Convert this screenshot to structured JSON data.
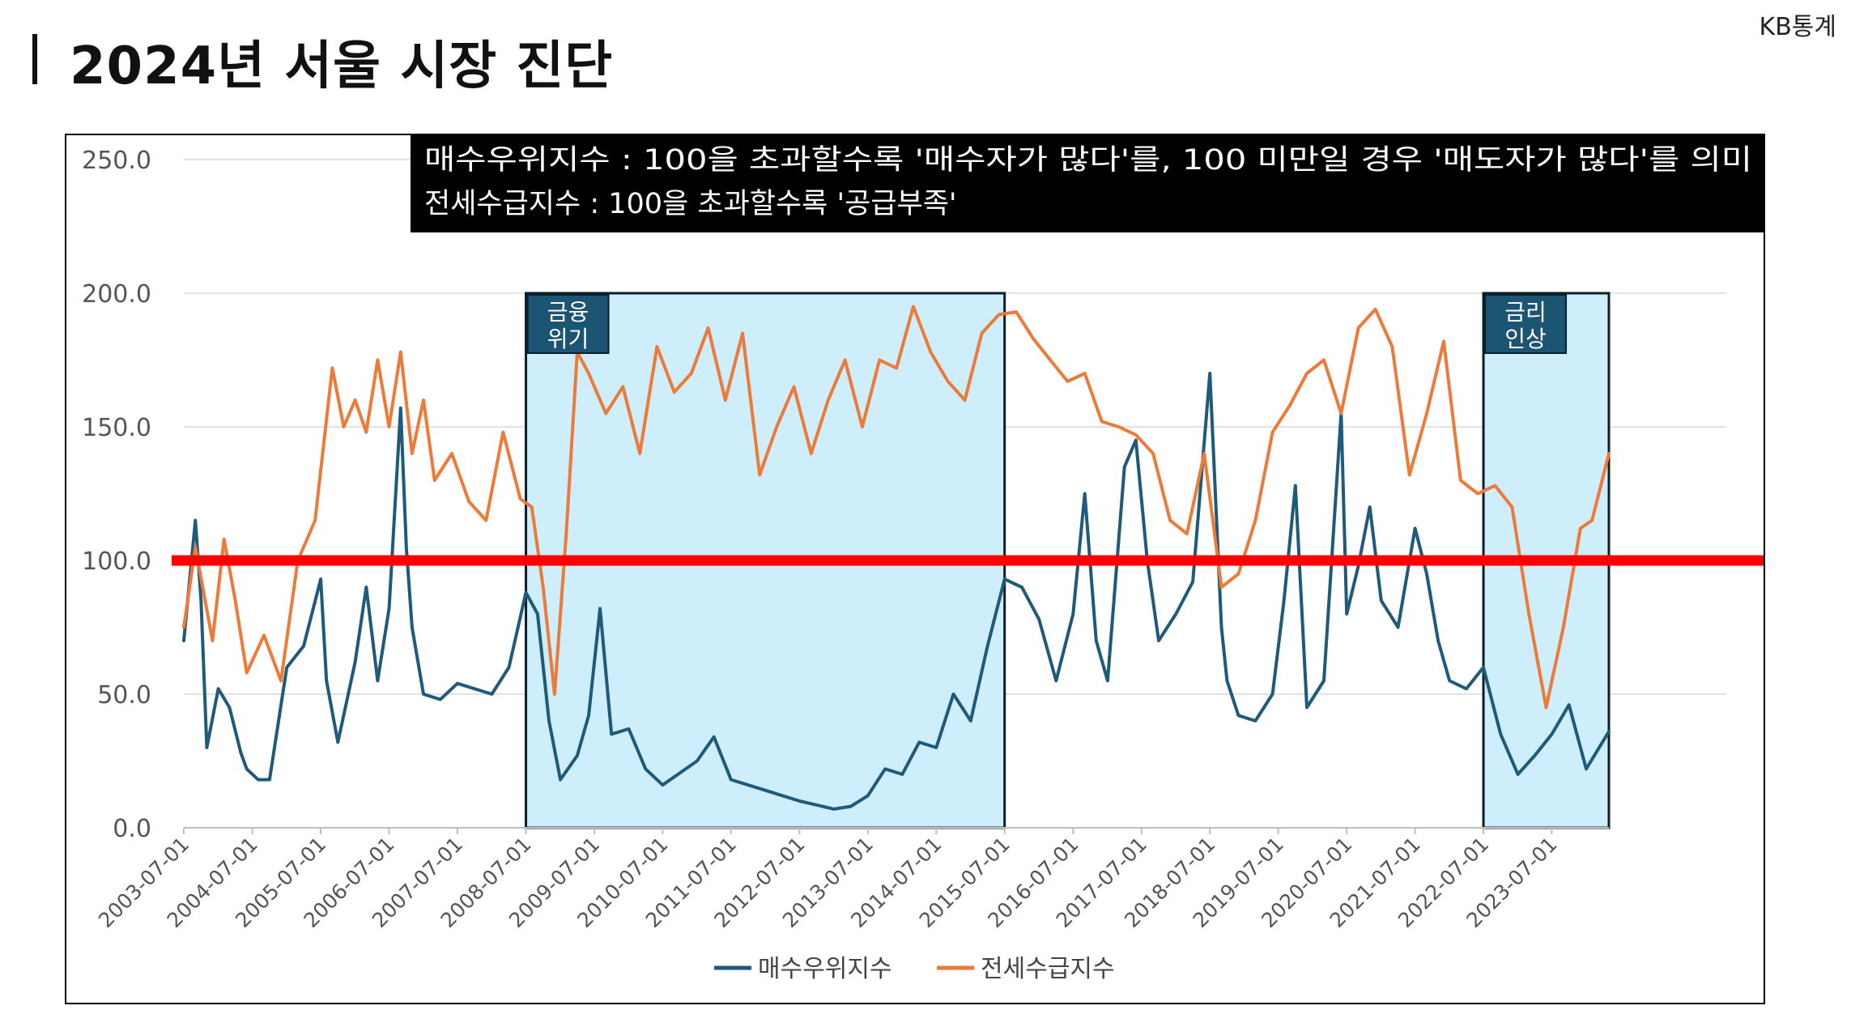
{
  "header": {
    "title": "2024년 서울 시장 진단",
    "source": "KB통계"
  },
  "colors": {
    "buy_index": "#1f5a7a",
    "jeonse_index": "#ee7a3a",
    "reference_line": "#ff0000",
    "highlight_fill": "#cdeefa",
    "label_box": "#1c5474",
    "note_box": "#000000"
  },
  "chart_data": {
    "type": "line",
    "xlabel": "",
    "ylabel": "",
    "ylim": [
      0,
      250
    ],
    "yticks": [
      "0.0",
      "50.0",
      "100.0",
      "150.0",
      "200.0",
      "250.0"
    ],
    "xticks": [
      "2003-07-01",
      "2004-07-01",
      "2005-07-01",
      "2006-07-01",
      "2007-07-01",
      "2008-07-01",
      "2009-07-01",
      "2010-07-01",
      "2011-07-01",
      "2012-07-01",
      "2013-07-01",
      "2014-07-01",
      "2015-07-01",
      "2016-07-01",
      "2017-07-01",
      "2018-07-01",
      "2019-07-01",
      "2020-07-01",
      "2021-07-01",
      "2022-07-01",
      "2023-07-01"
    ],
    "x_range": [
      "2003-07-01",
      "2024-05-01"
    ],
    "grid": "horizontal",
    "legend_position": "bottom",
    "reference_line": 100,
    "notes": [
      "매수우위지수 : 100을 초과할수록 '매수자가 많다'를, 100 미만일 경우 '매도자가 많다'를 의미",
      "전세수급지수 : 100을 초과할수록 '공급부족'"
    ],
    "highlights": [
      {
        "label": [
          "금융",
          "위기"
        ],
        "start": "2008-07-01",
        "end": "2015-07-01"
      },
      {
        "label": [
          "금리",
          "인상"
        ],
        "start": "2022-07-01",
        "end": "2024-05-01"
      }
    ],
    "series": [
      {
        "name": "매수우위지수",
        "x": [
          "2003-07-01",
          "2003-09-01",
          "2003-10-01",
          "2003-11-01",
          "2004-01-01",
          "2004-03-01",
          "2004-05-01",
          "2004-06-01",
          "2004-08-01",
          "2004-10-01",
          "2005-01-01",
          "2005-04-01",
          "2005-07-01",
          "2005-08-01",
          "2005-10-01",
          "2006-01-01",
          "2006-03-01",
          "2006-05-01",
          "2006-07-01",
          "2006-09-01",
          "2006-10-01",
          "2006-11-01",
          "2007-01-01",
          "2007-04-01",
          "2007-07-01",
          "2008-01-01",
          "2008-04-01",
          "2008-07-01",
          "2008-09-01",
          "2008-11-01",
          "2009-01-01",
          "2009-04-01",
          "2009-06-01",
          "2009-08-01",
          "2009-10-01",
          "2010-01-01",
          "2010-04-01",
          "2010-07-01",
          "2011-01-01",
          "2011-04-01",
          "2011-07-01",
          "2012-01-01",
          "2012-07-01",
          "2013-01-01",
          "2013-04-01",
          "2013-07-01",
          "2013-10-01",
          "2014-01-01",
          "2014-04-01",
          "2014-07-01",
          "2014-10-01",
          "2015-01-01",
          "2015-04-01",
          "2015-07-01",
          "2015-10-01",
          "2016-01-01",
          "2016-04-01",
          "2016-07-01",
          "2016-09-01",
          "2016-11-01",
          "2017-01-01",
          "2017-04-01",
          "2017-06-01",
          "2017-08-01",
          "2017-10-01",
          "2018-01-01",
          "2018-04-01",
          "2018-07-01",
          "2018-09-01",
          "2018-10-01",
          "2018-12-01",
          "2019-03-01",
          "2019-06-01",
          "2019-08-01",
          "2019-10-01",
          "2019-12-01",
          "2020-03-01",
          "2020-06-01",
          "2020-07-01",
          "2020-09-01",
          "2020-11-01",
          "2021-01-01",
          "2021-04-01",
          "2021-07-01",
          "2021-09-01",
          "2021-11-01",
          "2022-01-01",
          "2022-04-01",
          "2022-07-01",
          "2022-10-01",
          "2023-01-01",
          "2023-04-01",
          "2023-07-01",
          "2023-10-01",
          "2024-01-01",
          "2024-05-01"
        ],
        "values": [
          70,
          115,
          85,
          30,
          52,
          45,
          28,
          22,
          18,
          18,
          60,
          68,
          93,
          55,
          32,
          62,
          90,
          55,
          82,
          157,
          105,
          75,
          50,
          48,
          54,
          50,
          60,
          88,
          80,
          40,
          18,
          27,
          42,
          82,
          35,
          37,
          22,
          16,
          25,
          34,
          18,
          14,
          10,
          7,
          8,
          12,
          22,
          20,
          32,
          30,
          50,
          40,
          68,
          93,
          90,
          78,
          55,
          80,
          125,
          70,
          55,
          135,
          145,
          100,
          70,
          80,
          92,
          170,
          75,
          55,
          42,
          40,
          50,
          85,
          128,
          45,
          55,
          155,
          80,
          98,
          120,
          85,
          75,
          112,
          95,
          70,
          55,
          52,
          60,
          35,
          20,
          27,
          35,
          46,
          22,
          36
        ]
      },
      {
        "name": "전세수급지수",
        "x": [
          "2003-07-01",
          "2003-09-01",
          "2003-12-01",
          "2004-02-01",
          "2004-04-01",
          "2004-06-01",
          "2004-09-01",
          "2004-12-01",
          "2005-03-01",
          "2005-06-01",
          "2005-09-01",
          "2005-11-01",
          "2006-01-01",
          "2006-03-01",
          "2006-05-01",
          "2006-07-01",
          "2006-09-01",
          "2006-11-01",
          "2007-01-01",
          "2007-03-01",
          "2007-06-01",
          "2007-09-01",
          "2007-12-01",
          "2008-03-01",
          "2008-06-01",
          "2008-08-01",
          "2008-10-01",
          "2008-12-01",
          "2009-02-01",
          "2009-04-01",
          "2009-06-01",
          "2009-09-01",
          "2009-12-01",
          "2010-03-01",
          "2010-06-01",
          "2010-09-01",
          "2010-12-01",
          "2011-03-01",
          "2011-06-01",
          "2011-09-01",
          "2011-12-01",
          "2012-03-01",
          "2012-06-01",
          "2012-09-01",
          "2012-12-01",
          "2013-03-01",
          "2013-06-01",
          "2013-09-01",
          "2013-12-01",
          "2014-03-01",
          "2014-06-01",
          "2014-09-01",
          "2014-12-01",
          "2015-03-01",
          "2015-06-01",
          "2015-09-01",
          "2015-12-01",
          "2016-03-01",
          "2016-06-01",
          "2016-09-01",
          "2016-12-01",
          "2017-03-01",
          "2017-06-01",
          "2017-09-01",
          "2017-12-01",
          "2018-03-01",
          "2018-06-01",
          "2018-09-01",
          "2018-12-01",
          "2019-03-01",
          "2019-06-01",
          "2019-09-01",
          "2019-12-01",
          "2020-03-01",
          "2020-06-01",
          "2020-09-01",
          "2020-12-01",
          "2021-03-01",
          "2021-06-01",
          "2021-09-01",
          "2021-12-01",
          "2022-03-01",
          "2022-06-01",
          "2022-09-01",
          "2022-12-01",
          "2023-03-01",
          "2023-06-01",
          "2023-09-01",
          "2023-12-01",
          "2024-02-01",
          "2024-05-01"
        ],
        "values": [
          75,
          105,
          70,
          108,
          85,
          58,
          72,
          55,
          100,
          115,
          172,
          150,
          160,
          148,
          175,
          150,
          178,
          140,
          160,
          130,
          140,
          122,
          115,
          148,
          123,
          120,
          90,
          50,
          110,
          178,
          170,
          155,
          165,
          140,
          180,
          163,
          170,
          187,
          160,
          185,
          132,
          150,
          165,
          140,
          160,
          175,
          150,
          175,
          172,
          195,
          178,
          167,
          160,
          185,
          192,
          193,
          183,
          175,
          167,
          170,
          152,
          150,
          147,
          140,
          115,
          110,
          140,
          90,
          95,
          115,
          148,
          158,
          170,
          175,
          155,
          187,
          194,
          180,
          132,
          155,
          182,
          130,
          125,
          128,
          120,
          80,
          45,
          75,
          112,
          115,
          140
        ]
      }
    ]
  }
}
